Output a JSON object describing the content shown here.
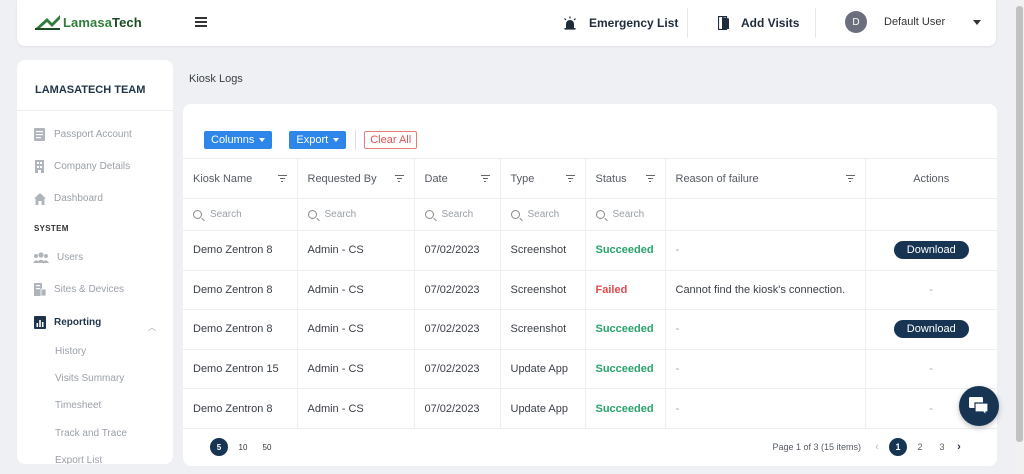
{
  "header": {
    "logo_text_a": "Lamasa",
    "logo_text_b": "Tech",
    "emergency_label": "Emergency List",
    "visits_label": "Add Visits",
    "avatar_letter": "D",
    "user_name": "Default User"
  },
  "sidebar": {
    "team": "LAMASATECH TEAM",
    "items": [
      {
        "label": "Passport Account",
        "icon": "passport-icon"
      },
      {
        "label": "Company Details",
        "icon": "building-icon"
      },
      {
        "label": "Dashboard",
        "icon": "home-icon"
      }
    ],
    "section": "SYSTEM",
    "system_items": [
      {
        "label": "Users",
        "icon": "users-icon"
      },
      {
        "label": "Sites & Devices",
        "icon": "devices-icon"
      },
      {
        "label": "Reporting",
        "icon": "report-icon"
      }
    ],
    "reporting_sub": [
      "History",
      "Visits Summary",
      "Timesheet",
      "Track and Trace",
      "Export List"
    ]
  },
  "breadcrumb": "Kiosk Logs",
  "toolbar": {
    "columns": "Columns",
    "export": "Export",
    "clear": "Clear All"
  },
  "table": {
    "headers": [
      "Kiosk Name",
      "Requested By",
      "Date",
      "Type",
      "Status",
      "Reason of failure",
      "Actions"
    ],
    "search_placeholder": "Search",
    "rows": [
      {
        "kiosk": "Demo Zentron 8",
        "by": "Admin - CS",
        "date": "07/02/2023",
        "type": "Screenshot",
        "status": "Succeeded",
        "reason": "-",
        "action": "Download"
      },
      {
        "kiosk": "Demo Zentron 8",
        "by": "Admin - CS",
        "date": "07/02/2023",
        "type": "Screenshot",
        "status": "Failed",
        "reason": "Cannot find the kiosk's connection.",
        "action": "-"
      },
      {
        "kiosk": "Demo Zentron 8",
        "by": "Admin - CS",
        "date": "07/02/2023",
        "type": "Screenshot",
        "status": "Succeeded",
        "reason": "-",
        "action": "Download"
      },
      {
        "kiosk": "Demo Zentron 15",
        "by": "Admin - CS",
        "date": "07/02/2023",
        "type": "Update App",
        "status": "Succeeded",
        "reason": "-",
        "action": "-"
      },
      {
        "kiosk": "Demo Zentron 8",
        "by": "Admin - CS",
        "date": "07/02/2023",
        "type": "Update App",
        "status": "Succeeded",
        "reason": "-",
        "action": "-"
      }
    ]
  },
  "pagination": {
    "sizes": [
      "5",
      "10",
      "50"
    ],
    "info": "Page 1 of 3 (15 items)",
    "pages": [
      "1",
      "2",
      "3"
    ]
  },
  "colors": {
    "brand_green": "#2f7d3a",
    "navy": "#173553",
    "blue": "#2d86e8",
    "success": "#29a36a",
    "failure": "#e14b4b"
  }
}
